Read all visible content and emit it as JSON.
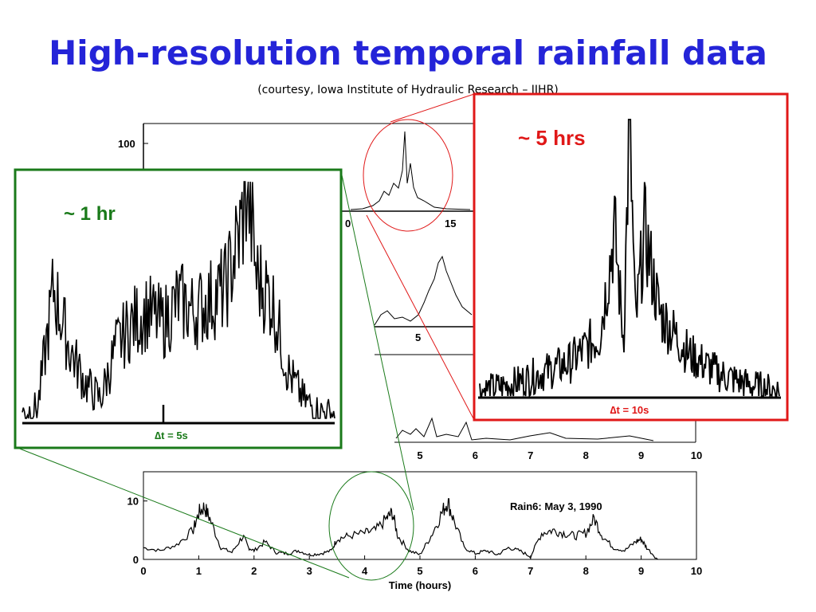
{
  "title": "High-resolution temporal rainfall data",
  "subtitle": "(courtesy, Iowa Institute of Hydraulic Research – IIHR)",
  "colors": {
    "title": "#2424d8",
    "green": "#1a7a1a",
    "red": "#e01818",
    "trace": "#000000"
  },
  "chart_data": [
    {
      "type": "line",
      "name": "Rain6",
      "annotation": "Rain6: May 3, 1990",
      "xlabel": "Time (hours)",
      "ylabel": "",
      "xlim": [
        0,
        10
      ],
      "ylim": [
        0,
        15
      ],
      "x_ticks": [
        "0",
        "1",
        "2",
        "3",
        "4",
        "5",
        "6",
        "7",
        "8",
        "9",
        "10"
      ],
      "y_ticks": [
        "0",
        "10"
      ],
      "x": [
        0,
        0.3,
        0.6,
        0.9,
        1.0,
        1.1,
        1.2,
        1.4,
        1.6,
        1.8,
        1.9,
        2.0,
        2.2,
        2.4,
        2.6,
        2.8,
        3.0,
        3.2,
        3.4,
        3.5,
        3.7,
        4.0,
        4.2,
        4.4,
        4.5,
        4.6,
        4.8,
        5.0,
        5.2,
        5.4,
        5.5,
        5.6,
        5.8,
        6.0,
        6.2,
        6.4,
        6.6,
        6.8,
        7.0,
        7.2,
        7.4,
        7.6,
        7.8,
        8.0,
        8.15,
        8.3,
        8.5,
        8.7,
        8.9,
        9.0,
        9.1,
        9.3
      ],
      "y": [
        2,
        1.5,
        2.5,
        5,
        8,
        9,
        7,
        2,
        1.2,
        4,
        2,
        1.5,
        3,
        1.2,
        1.0,
        1.5,
        0.8,
        1.0,
        1.5,
        3.5,
        4,
        4.5,
        5,
        7,
        8,
        4,
        1.5,
        0.8,
        4,
        8,
        10,
        7,
        2,
        1.0,
        1.5,
        0.8,
        2,
        1.5,
        0.5,
        4.5,
        5,
        4.5,
        4,
        4.5,
        7,
        4,
        2,
        1.5,
        3,
        3.5,
        2,
        0
      ]
    },
    {
      "type": "line",
      "name": "inset-5hrs",
      "annotation": "~ 5 hrs",
      "xlabel": "∆t = 10s",
      "x": [
        0,
        10,
        20,
        30,
        40,
        45,
        48,
        50,
        52,
        55,
        60,
        70,
        80,
        90,
        100
      ],
      "y": [
        2,
        4,
        8,
        12,
        22,
        60,
        20,
        100,
        25,
        60,
        30,
        15,
        8,
        4,
        2
      ]
    },
    {
      "type": "line",
      "name": "inset-1hr",
      "annotation": "~ 1 hr",
      "xlabel": "∆t = 5s",
      "x": [
        0,
        5,
        10,
        15,
        20,
        25,
        30,
        35,
        40,
        45,
        50,
        55,
        60,
        65,
        70,
        72,
        75,
        80,
        85,
        90,
        95,
        100
      ],
      "y": [
        2,
        5,
        55,
        30,
        15,
        8,
        30,
        40,
        45,
        40,
        50,
        45,
        50,
        55,
        80,
        100,
        60,
        50,
        20,
        8,
        3,
        2
      ]
    }
  ],
  "background_panels": {
    "panel1_ticks": [
      "100",
      "0",
      "15"
    ],
    "panel2_ticks": [
      "5"
    ],
    "panel3_ticks": [
      "5",
      "6",
      "7",
      "8",
      "9",
      "10"
    ]
  }
}
